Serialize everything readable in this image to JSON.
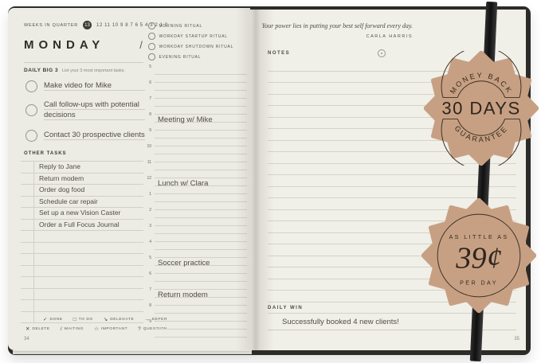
{
  "left_page": {
    "weeks_label": "WEEKS IN QUARTER",
    "current_week": "13",
    "week_numbers": "12 11 10 9 8 7 6 5 4 3 2 1 0",
    "day_title": "MONDAY",
    "date_slash": "/",
    "big3_title": "DAILY BIG 3",
    "big3_subtitle": "List your 3 most important tasks.",
    "big3_tasks": [
      "Make video for Mike",
      "Call follow-ups with potential decisions",
      "Contact 30 prospective clients"
    ],
    "other_tasks_title": "OTHER TASKS",
    "other_tasks": [
      "Reply to Jane",
      "Return modem",
      "Order dog food",
      "Schedule car repair",
      "Set up a new Vision Caster",
      "Order a Full Focus Journal"
    ],
    "rituals": [
      "MORNING RITUAL",
      "WORKDAY STARTUP RITUAL",
      "WORKDAY SHUTDOWN RITUAL",
      "EVENING RITUAL"
    ],
    "schedule_hours": [
      "5",
      "6",
      "7",
      "8",
      "9",
      "10",
      "11",
      "12",
      "1",
      "2",
      "3",
      "4",
      "5",
      "6",
      "7",
      "8",
      "9"
    ],
    "schedule_entries": [
      {
        "hour_index": 3,
        "text": "Meeting w/ Mike"
      },
      {
        "hour_index": 7,
        "text": "Lunch w/ Clara"
      },
      {
        "hour_index": 12,
        "text": "Soccer practice"
      },
      {
        "hour_index": 14,
        "text": "Return modem"
      }
    ],
    "legend_row1": [
      {
        "symbol": "✓",
        "label": "DONE"
      },
      {
        "symbol": "□",
        "label": "TO DO"
      },
      {
        "symbol": "↘",
        "label": "DELEGATE"
      },
      {
        "symbol": "→",
        "label": "DEFER"
      }
    ],
    "legend_row2": [
      {
        "symbol": "✕",
        "label": "DELETE"
      },
      {
        "symbol": "/",
        "label": "WAITING"
      },
      {
        "symbol": "☆",
        "label": "IMPORTANT"
      },
      {
        "symbol": "?",
        "label": "QUESTION"
      }
    ],
    "page_number": "34"
  },
  "right_page": {
    "quote": "Your power lies in putting your best self forward every day.",
    "quote_author": "CARLA HARRIS",
    "notes_title": "NOTES",
    "daily_win_title": "DAILY WIN",
    "daily_win_text": "Successfully booked 4 new clients!",
    "page_number": "35"
  },
  "badges": {
    "money_back": {
      "top_arc": "MONEY BACK",
      "center": "30 DAYS",
      "bottom_arc": "GUARANTEE"
    },
    "price": {
      "top": "AS LITTLE AS",
      "amount": "39¢",
      "bottom": "PER DAY"
    }
  },
  "colors": {
    "badge_tan": "#c7a083",
    "badge_ink": "#33291f",
    "cover_dark": "#2d2b28",
    "paper_left": "#ecebe4",
    "paper_right": "#f0efe8",
    "handwriting": "#504d45"
  }
}
